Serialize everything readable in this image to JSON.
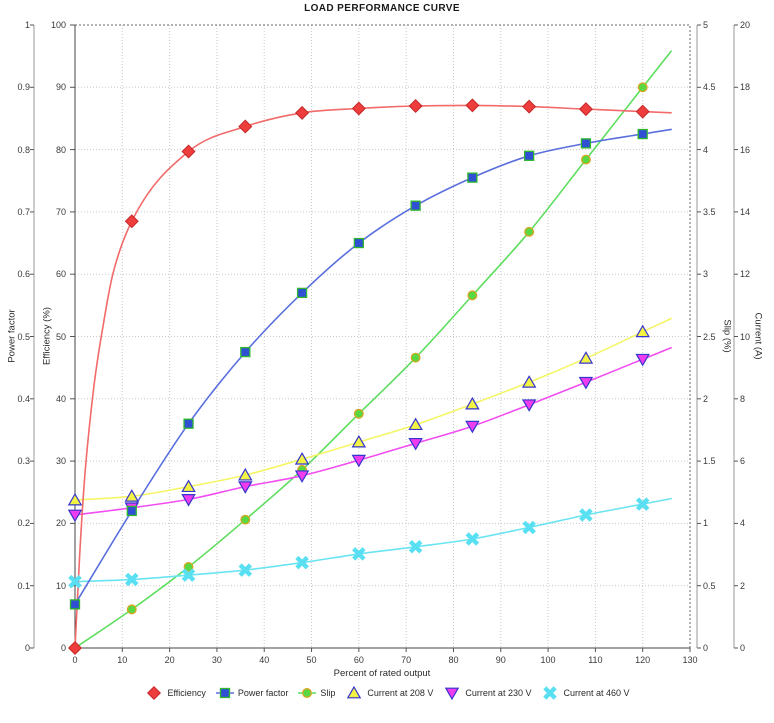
{
  "title": "LOAD PERFORMANCE CURVE",
  "axes": {
    "x": {
      "label": "Percent of rated output",
      "min": 0,
      "max": 130,
      "ticks": [
        0,
        10,
        20,
        30,
        40,
        50,
        60,
        70,
        80,
        90,
        100,
        110,
        120,
        130
      ]
    },
    "power_factor": {
      "label": "Power factor",
      "min": 0,
      "max": 1,
      "ticks": [
        0,
        0.1,
        0.2,
        0.3,
        0.4,
        0.5,
        0.6,
        0.7,
        0.8,
        0.9,
        1
      ]
    },
    "efficiency": {
      "label": "Efficiency (%)",
      "min": 0,
      "max": 100,
      "ticks": [
        0,
        10,
        20,
        30,
        40,
        50,
        60,
        70,
        80,
        90,
        100
      ]
    },
    "slip": {
      "label": "Slip (%)",
      "min": 0,
      "max": 5,
      "ticks": [
        0,
        0.5,
        1,
        1.5,
        2,
        2.5,
        3,
        3.5,
        4,
        4.5,
        5
      ]
    },
    "current": {
      "label": "Current (A)",
      "min": 0,
      "max": 20,
      "ticks": [
        0,
        2,
        4,
        6,
        8,
        10,
        12,
        14,
        16,
        18,
        20
      ]
    }
  },
  "chart_data": {
    "type": "line",
    "title": "LOAD PERFORMANCE CURVE",
    "xlabel": "Percent of rated output",
    "x": [
      0,
      12,
      24,
      36,
      48,
      60,
      72,
      84,
      96,
      108,
      120
    ],
    "grid": true,
    "legend_position": "bottom",
    "series": [
      {
        "name": "Efficiency",
        "axis": "efficiency",
        "marker": "diamond",
        "color": "#ed3d3d",
        "marker_stroke": "#c62828",
        "line_color": "#f26a6a",
        "values": [
          0,
          68.5,
          79.7,
          83.7,
          85.9,
          86.6,
          87.0,
          87.1,
          86.9,
          86.5,
          86.1
        ],
        "curve_helper_points": {
          "x": [
            1,
            2,
            4,
            6,
            8
          ],
          "values": [
            15,
            27,
            42,
            52,
            60
          ]
        }
      },
      {
        "name": "Power factor",
        "axis": "power_factor",
        "marker": "square",
        "color": "#2f50d2",
        "marker_stroke": "#2eb82e",
        "line_color": "#5a6fdd",
        "values": [
          0.07,
          0.22,
          0.36,
          0.475,
          0.57,
          0.65,
          0.71,
          0.755,
          0.79,
          0.81,
          0.825
        ]
      },
      {
        "name": "Slip",
        "axis": "slip",
        "marker": "circle",
        "color": "#58d943",
        "marker_stroke": "#d9a520",
        "line_color": "#5ddd5d",
        "values": [
          0,
          0.31,
          0.65,
          1.03,
          1.43,
          1.88,
          2.33,
          2.83,
          3.34,
          3.92,
          4.5
        ]
      },
      {
        "name": "Current at 208 V",
        "axis": "current",
        "marker": "triangle-up",
        "color": "#f3f344",
        "marker_stroke": "#3535cf",
        "line_color": "#f5f566",
        "values": [
          4.75,
          4.87,
          5.18,
          5.55,
          6.06,
          6.61,
          7.17,
          7.83,
          8.53,
          9.3,
          10.15
        ]
      },
      {
        "name": "Current at 230 V",
        "axis": "current",
        "marker": "triangle-down",
        "color": "#ee3cee",
        "marker_stroke": "#3535cf",
        "line_color": "#f14df1",
        "values": [
          4.27,
          4.5,
          4.77,
          5.18,
          5.53,
          6.03,
          6.57,
          7.12,
          7.81,
          8.53,
          9.27
        ]
      },
      {
        "name": "Current at 460 V",
        "axis": "current",
        "marker": "x",
        "color": "#59dff2",
        "marker_stroke": "#59dff2",
        "line_color": "#6ae4f2",
        "values": [
          2.13,
          2.2,
          2.34,
          2.5,
          2.74,
          3.02,
          3.25,
          3.5,
          3.87,
          4.27,
          4.62
        ]
      }
    ]
  }
}
